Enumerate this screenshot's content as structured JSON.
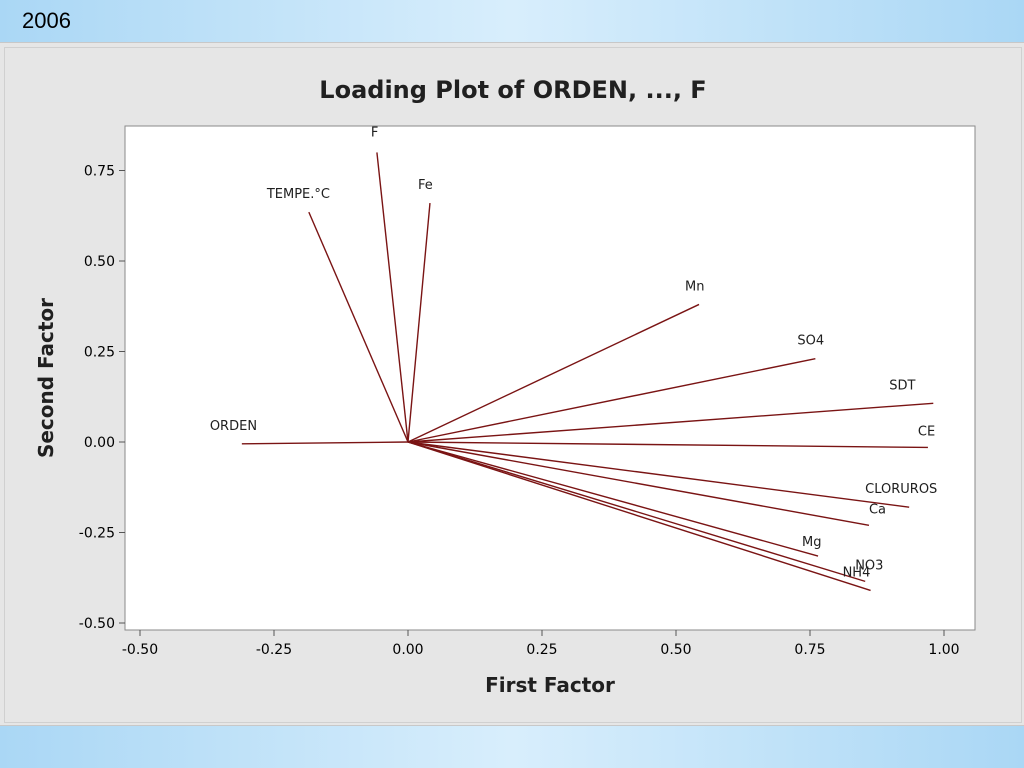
{
  "header": {
    "year": "2006"
  },
  "chart_data": {
    "type": "scatter",
    "subtype": "loading-plot",
    "title": "Loading Plot of ORDEN, ..., F",
    "xlabel": "First Factor",
    "ylabel": "Second Factor",
    "xlim": [
      -0.5,
      1.0
    ],
    "ylim": [
      -0.5,
      0.75
    ],
    "xticks": [
      "-0.50",
      "-0.25",
      "0.00",
      "0.25",
      "0.50",
      "0.75",
      "1.00"
    ],
    "yticks": [
      "-0.50",
      "-0.25",
      "0.00",
      "0.25",
      "0.50",
      "0.75"
    ],
    "grid": false,
    "line_color": "#7a1414",
    "points": [
      {
        "name": "ORDEN",
        "x": -0.31,
        "y": -0.005
      },
      {
        "name": "F",
        "x": -0.058,
        "y": 0.8
      },
      {
        "name": "TEMPE.°C",
        "x": -0.185,
        "y": 0.635
      },
      {
        "name": "Fe",
        "x": 0.041,
        "y": 0.66
      },
      {
        "name": "Mn",
        "x": 0.543,
        "y": 0.38
      },
      {
        "name": "SO4",
        "x": 0.76,
        "y": 0.23
      },
      {
        "name": "SDT",
        "x": 0.98,
        "y": 0.107
      },
      {
        "name": "CE",
        "x": 0.97,
        "y": -0.015
      },
      {
        "name": "CLORUROS",
        "x": 0.935,
        "y": -0.18
      },
      {
        "name": "Ca",
        "x": 0.86,
        "y": -0.23
      },
      {
        "name": "Mg",
        "x": 0.765,
        "y": -0.315
      },
      {
        "name": "NO3",
        "x": 0.853,
        "y": -0.385
      },
      {
        "name": "NH4",
        "x": 0.863,
        "y": -0.41
      }
    ]
  }
}
